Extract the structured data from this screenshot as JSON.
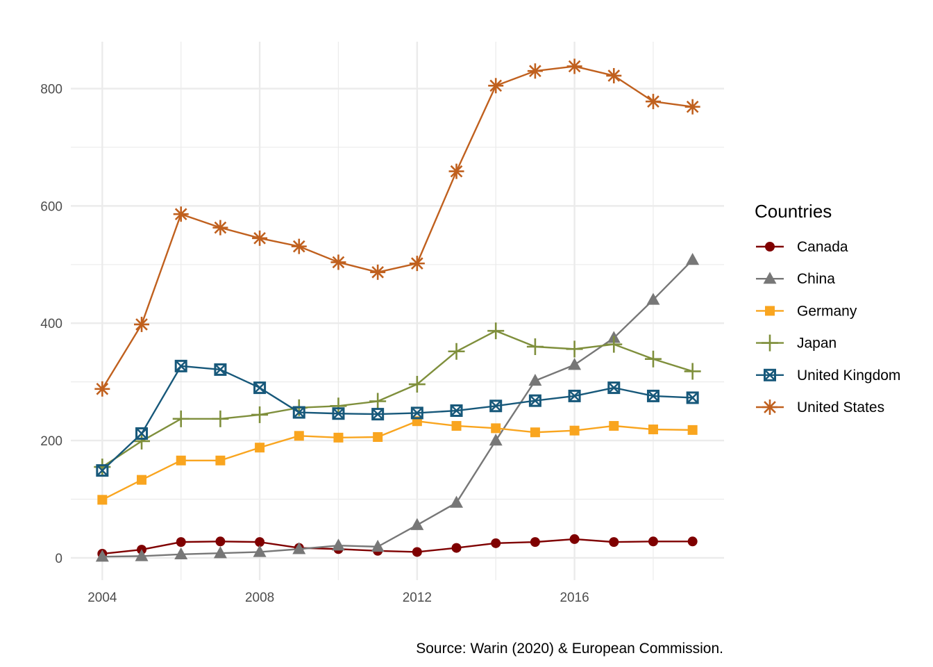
{
  "chart_data": {
    "type": "line",
    "title": "",
    "xlabel": "",
    "ylabel": "",
    "caption": "Source: Warin (2020) & European Commission.",
    "x": [
      2004,
      2005,
      2006,
      2007,
      2008,
      2009,
      2010,
      2011,
      2012,
      2013,
      2014,
      2015,
      2016,
      2017,
      2018,
      2019
    ],
    "xlim": [
      2003.2,
      2019.8
    ],
    "ylim": [
      -38,
      880
    ],
    "x_ticks": [
      "2004",
      "2008",
      "2012",
      "2016"
    ],
    "y_ticks": [
      "0",
      "200",
      "400",
      "600",
      "800"
    ],
    "grid": true,
    "legend": {
      "title": "Countries",
      "position": "right"
    },
    "series": [
      {
        "name": "Canada",
        "color": "#7f0000",
        "marker": "circle",
        "values": [
          7,
          14,
          27,
          28,
          27,
          17,
          15,
          12,
          10,
          17,
          25,
          27,
          32,
          27,
          28,
          28
        ]
      },
      {
        "name": "China",
        "color": "#777777",
        "marker": "triangle",
        "values": [
          2,
          3,
          6,
          8,
          10,
          15,
          21,
          19,
          56,
          94,
          200,
          302,
          329,
          375,
          440,
          508
        ]
      },
      {
        "name": "Germany",
        "color": "#f9a51f",
        "marker": "square",
        "values": [
          99,
          133,
          166,
          166,
          188,
          208,
          205,
          206,
          233,
          225,
          221,
          214,
          217,
          225,
          219,
          218
        ]
      },
      {
        "name": "Japan",
        "color": "#7f8f3c",
        "marker": "plus",
        "values": [
          155,
          199,
          237,
          237,
          244,
          256,
          259,
          267,
          296,
          352,
          387,
          360,
          356,
          364,
          339,
          318
        ]
      },
      {
        "name": "United Kingdom",
        "color": "#17587a",
        "marker": "boxx",
        "values": [
          149,
          212,
          327,
          321,
          290,
          248,
          246,
          245,
          247,
          251,
          259,
          268,
          276,
          290,
          276,
          273
        ]
      },
      {
        "name": "United States",
        "color": "#c0601e",
        "marker": "asterisk",
        "values": [
          288,
          398,
          586,
          563,
          545,
          531,
          504,
          487,
          502,
          659,
          805,
          830,
          838,
          822,
          778,
          769
        ]
      }
    ]
  }
}
